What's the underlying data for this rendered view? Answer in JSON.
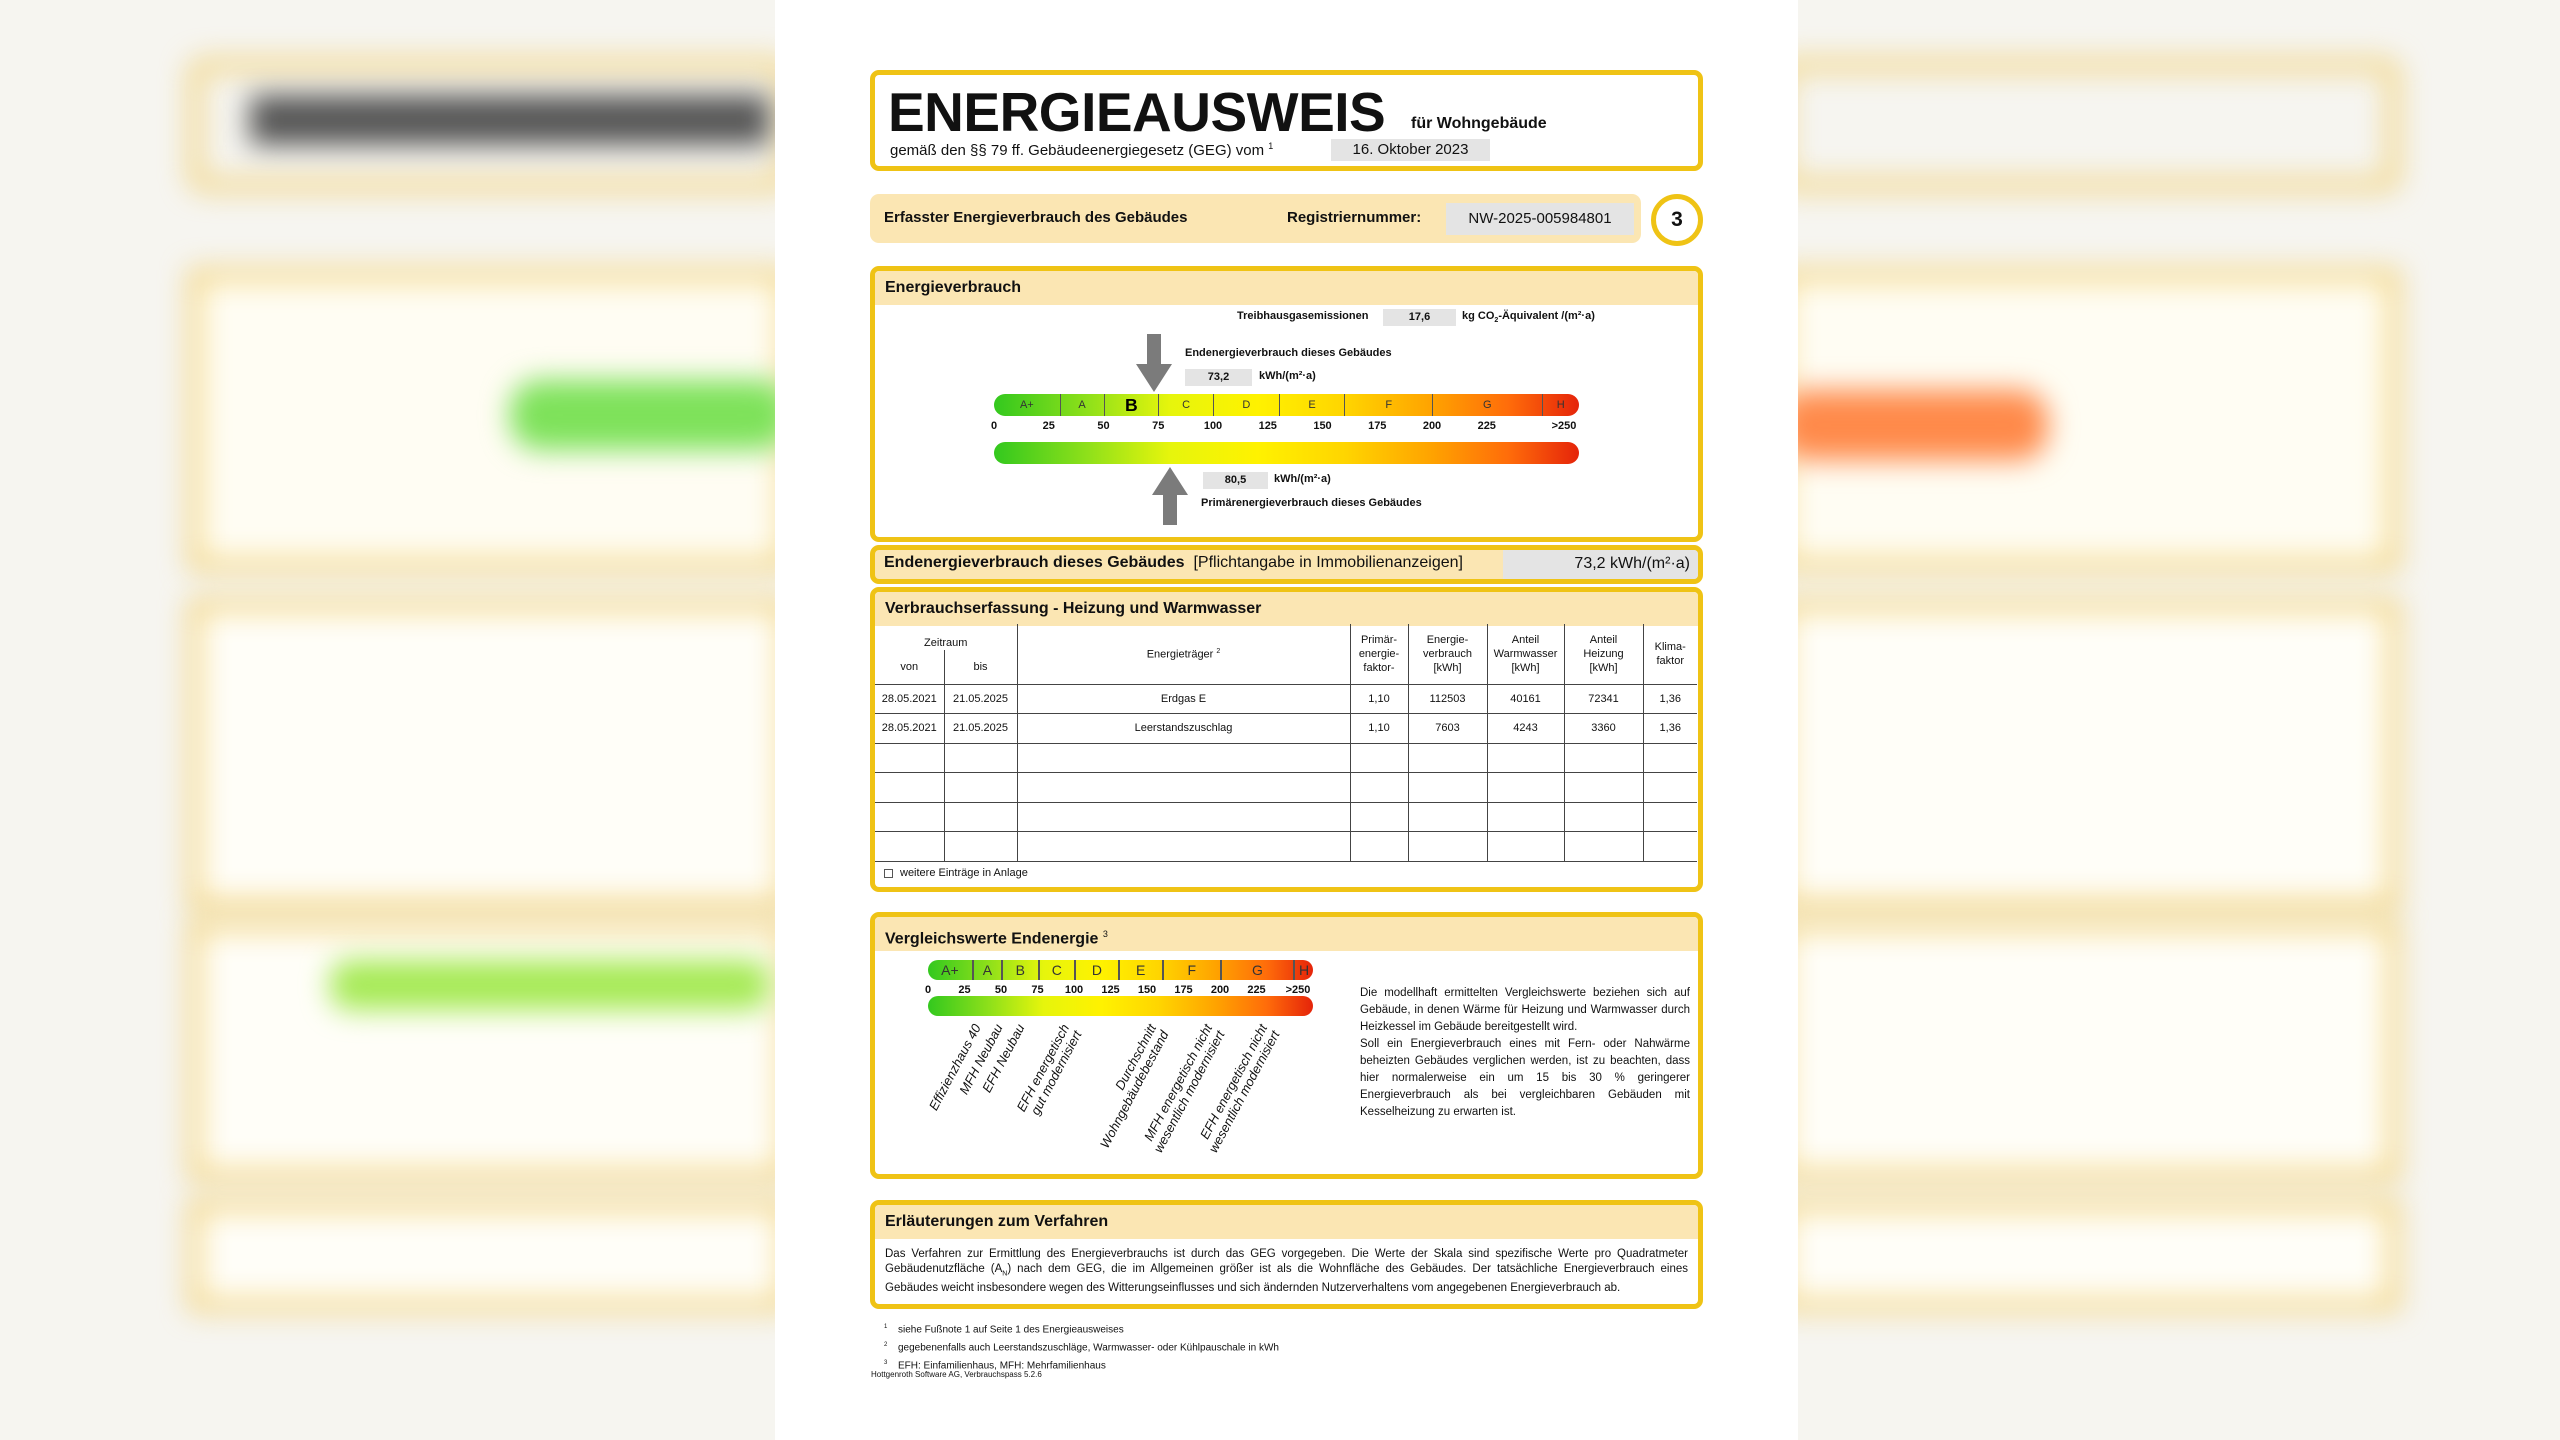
{
  "header": {
    "title": "ENERGIEAUSWEIS",
    "subtitle": "für Wohngebäude",
    "law_text": "gemäß den §§ 79 ff. Gebäudeenergiegesetz (GEG) vom",
    "law_footnote": "1",
    "law_date": "16. Oktober 2023"
  },
  "regbar": {
    "label": "Erfasster Energieverbrauch des Gebäudes",
    "reg_label": "Registriernummer:",
    "reg_value": "NW-2025-005984801",
    "page_number": "3"
  },
  "energy": {
    "heading": "Energieverbrauch",
    "ghg_label": "Treibhausgasemissionen",
    "ghg_value": "17,6",
    "ghg_unit_pre": "kg CO",
    "ghg_unit_sub": "2",
    "ghg_unit_post": "-Äquivalent /(m²·a)",
    "end_label": "Endenergieverbrauch dieses Gebäudes",
    "end_value": "73,2",
    "end_value_num": 73.2,
    "end_unit": "kWh/(m²·a)",
    "primary_value": "80,5",
    "primary_value_num": 80.5,
    "primary_unit": "kWh/(m²·a)",
    "primary_label": "Primärenergieverbrauch dieses Gebäudes",
    "highlight_class": "B"
  },
  "scale": {
    "bands": [
      {
        "label": "A+",
        "from": 0,
        "to": 30
      },
      {
        "label": "A",
        "from": 30,
        "to": 50
      },
      {
        "label": "B",
        "from": 50,
        "to": 75
      },
      {
        "label": "C",
        "from": 75,
        "to": 100
      },
      {
        "label": "D",
        "from": 100,
        "to": 130
      },
      {
        "label": "E",
        "from": 130,
        "to": 160
      },
      {
        "label": "F",
        "from": 160,
        "to": 200
      },
      {
        "label": "G",
        "from": 200,
        "to": 250
      },
      {
        "label": "H",
        "from": 250,
        "to": 275
      }
    ],
    "ticks": [
      "0",
      "25",
      "50",
      "75",
      "100",
      "125",
      "150",
      "175",
      "200",
      "225",
      ">250"
    ],
    "colors": {
      "low": "#33c81e",
      "mid": "#fff200",
      "high": "#e5240a"
    }
  },
  "endline": {
    "label": "Endenergieverbrauch dieses Gebäudes",
    "note": "[Pflichtangabe in Immobilienanzeigen]",
    "value": "73,2 kWh/(m²·a)"
  },
  "consumption": {
    "heading": "Verbrauchserfassung - Heizung und Warmwasser",
    "period_label": "Zeitraum",
    "from_label": "von",
    "to_label": "bis",
    "columns": [
      "Energieträger",
      "Primär-\nenergie-\nfaktor-",
      "Energie-\nverbrauch\n[kWh]",
      "Anteil\nWarmwasser\n[kWh]",
      "Anteil\nHeizung\n[kWh]",
      "Klima-\nfaktor"
    ],
    "carrier_footnote": "2",
    "rows": [
      [
        "28.05.2021",
        "21.05.2025",
        "Erdgas E",
        "1,10",
        "112503",
        "40161",
        "72341",
        "1,36"
      ],
      [
        "28.05.2021",
        "21.05.2025",
        "Leerstandszuschlag",
        "1,10",
        "7603",
        "4243",
        "3360",
        "1,36"
      ],
      [
        "",
        "",
        "",
        "",
        "",
        "",
        "",
        ""
      ],
      [
        "",
        "",
        "",
        "",
        "",
        "",
        "",
        ""
      ],
      [
        "",
        "",
        "",
        "",
        "",
        "",
        "",
        ""
      ],
      [
        "",
        "",
        "",
        "",
        "",
        "",
        "",
        ""
      ]
    ],
    "more_entries_label": "weitere Einträge in Anlage",
    "more_entries_checked": false
  },
  "comparison": {
    "heading": "Vergleichswerte Endenergie",
    "heading_footnote": "3",
    "labels": [
      {
        "lines": [
          "Effizienzhaus 40"
        ],
        "value": 30
      },
      {
        "lines": [
          "MFH Neubau"
        ],
        "value": 45
      },
      {
        "lines": [
          "EFH Neubau"
        ],
        "value": 60
      },
      {
        "lines": [
          "EFH energetisch",
          "gut modernisiert"
        ],
        "value": 90
      },
      {
        "lines": [
          "Durchschnitt",
          "Wohngebäudebestand"
        ],
        "value": 150
      },
      {
        "lines": [
          "MFH energetisch nicht",
          "wesentlich modernisiert"
        ],
        "value": 188
      },
      {
        "lines": [
          "EFH energetisch nicht",
          "wesentlich modernisiert"
        ],
        "value": 226
      }
    ],
    "text1": "Die modellhaft ermittelten Vergleichswerte beziehen sich auf Gebäude, in denen Wärme für Heizung und Warmwasser durch Heizkessel im Gebäude bereitgestellt wird.",
    "text2": "Soll ein Energieverbrauch eines mit Fern- oder Nahwärme beheizten Gebäudes verglichen werden, ist zu beachten, dass hier normalerweise ein um 15 bis 30 % geringerer Energieverbrauch als bei vergleichbaren Gebäuden mit Kesselheizung zu erwarten ist."
  },
  "explanation": {
    "heading": "Erläuterungen zum Verfahren",
    "text_a": "Das Verfahren zur Ermittlung des Energieverbrauchs ist durch das GEG vorgegeben. Die Werte der Skala sind spezifische Werte pro Quadratmeter Gebäudenutzfläche (A",
    "text_sub": "N",
    "text_b": ") nach dem GEG, die im Allgemeinen größer ist als die Wohnfläche des Gebäudes. Der tatsächliche Energieverbrauch eines Gebäudes weicht insbesondere wegen des Witterungseinflusses und sich ändernden Nutzerverhaltens vom angegebenen Energieverbrauch ab."
  },
  "footnotes": [
    {
      "num": "1",
      "text": "siehe Fußnote 1 auf Seite 1 des Energieausweises"
    },
    {
      "num": "2",
      "text": "gegebenenfalls auch Leerstandszuschläge, Warmwasser- oder Kühlpauschale in kWh"
    },
    {
      "num": "3",
      "text": "EFH: Einfamilienhaus, MFH: Mehrfamilienhaus"
    }
  ],
  "software": "Hottgenroth Software AG, Verbrauchspass 5.2.6",
  "accent_color": "#efc315",
  "section_fill": "#fbe6b3"
}
